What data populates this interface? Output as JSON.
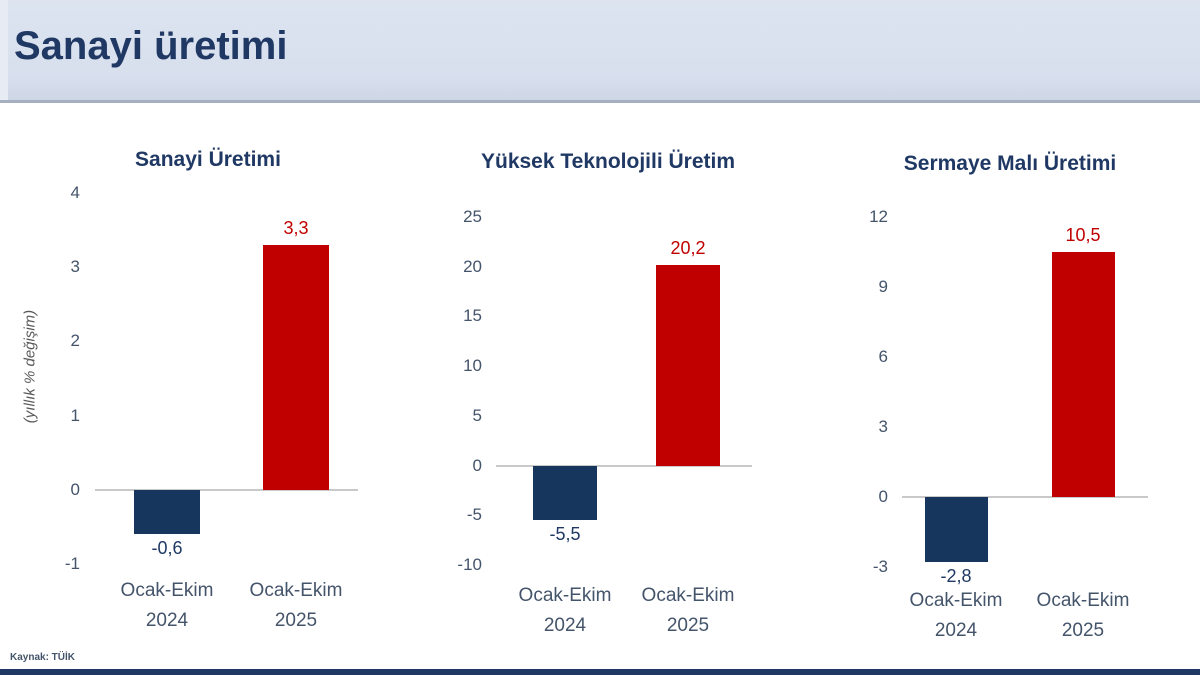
{
  "page": {
    "title": "Sanayi üretimi",
    "source": "Kaynak: TÜİK",
    "y_axis_label": "(yıllık % değişim)"
  },
  "colors": {
    "navy_bar": "#17365d",
    "red_bar": "#c00000",
    "title_text": "#1f3864",
    "tick_text": "#44546a",
    "value_negative": "#1f3864",
    "value_positive": "#c00000",
    "axis_line": "#c9c9c9",
    "header_bg": "#d8e0ee",
    "footer_bar": "#1f3864"
  },
  "chart_data": [
    {
      "type": "bar",
      "title": "Sanayi Üretimi",
      "ylabel": "(yıllık % değişim)",
      "categories": [
        {
          "line1": "Ocak-Ekim",
          "line2": "2024"
        },
        {
          "line1": "Ocak-Ekim",
          "line2": "2025"
        }
      ],
      "values": [
        -0.6,
        3.3
      ],
      "value_labels": [
        "-0,6",
        "3,3"
      ],
      "bar_colors": [
        "navy_bar",
        "red_bar"
      ],
      "ylim": [
        -1,
        4
      ],
      "yticks": [
        4,
        3,
        2,
        1,
        0,
        -1
      ],
      "grid": false,
      "legend": "none"
    },
    {
      "type": "bar",
      "title": "Yüksek Teknolojili Üretim",
      "categories": [
        {
          "line1": "Ocak-Ekim",
          "line2": "2024"
        },
        {
          "line1": "Ocak-Ekim",
          "line2": "2025"
        }
      ],
      "values": [
        -5.5,
        20.2
      ],
      "value_labels": [
        "-5,5",
        "20,2"
      ],
      "bar_colors": [
        "navy_bar",
        "red_bar"
      ],
      "ylim": [
        -10,
        25
      ],
      "yticks": [
        25,
        20,
        15,
        10,
        5,
        0,
        -5,
        -10
      ],
      "grid": false,
      "legend": "none"
    },
    {
      "type": "bar",
      "title": "Sermaye Malı Üretimi",
      "categories": [
        {
          "line1": "Ocak-Ekim",
          "line2": "2024"
        },
        {
          "line1": "Ocak-Ekim",
          "line2": "2025"
        }
      ],
      "values": [
        -2.8,
        10.5
      ],
      "value_labels": [
        "-2,8",
        "10,5"
      ],
      "bar_colors": [
        "navy_bar",
        "red_bar"
      ],
      "ylim": [
        -3,
        12
      ],
      "yticks": [
        12,
        9,
        6,
        3,
        0,
        -3
      ],
      "grid": false,
      "legend": "none"
    }
  ]
}
